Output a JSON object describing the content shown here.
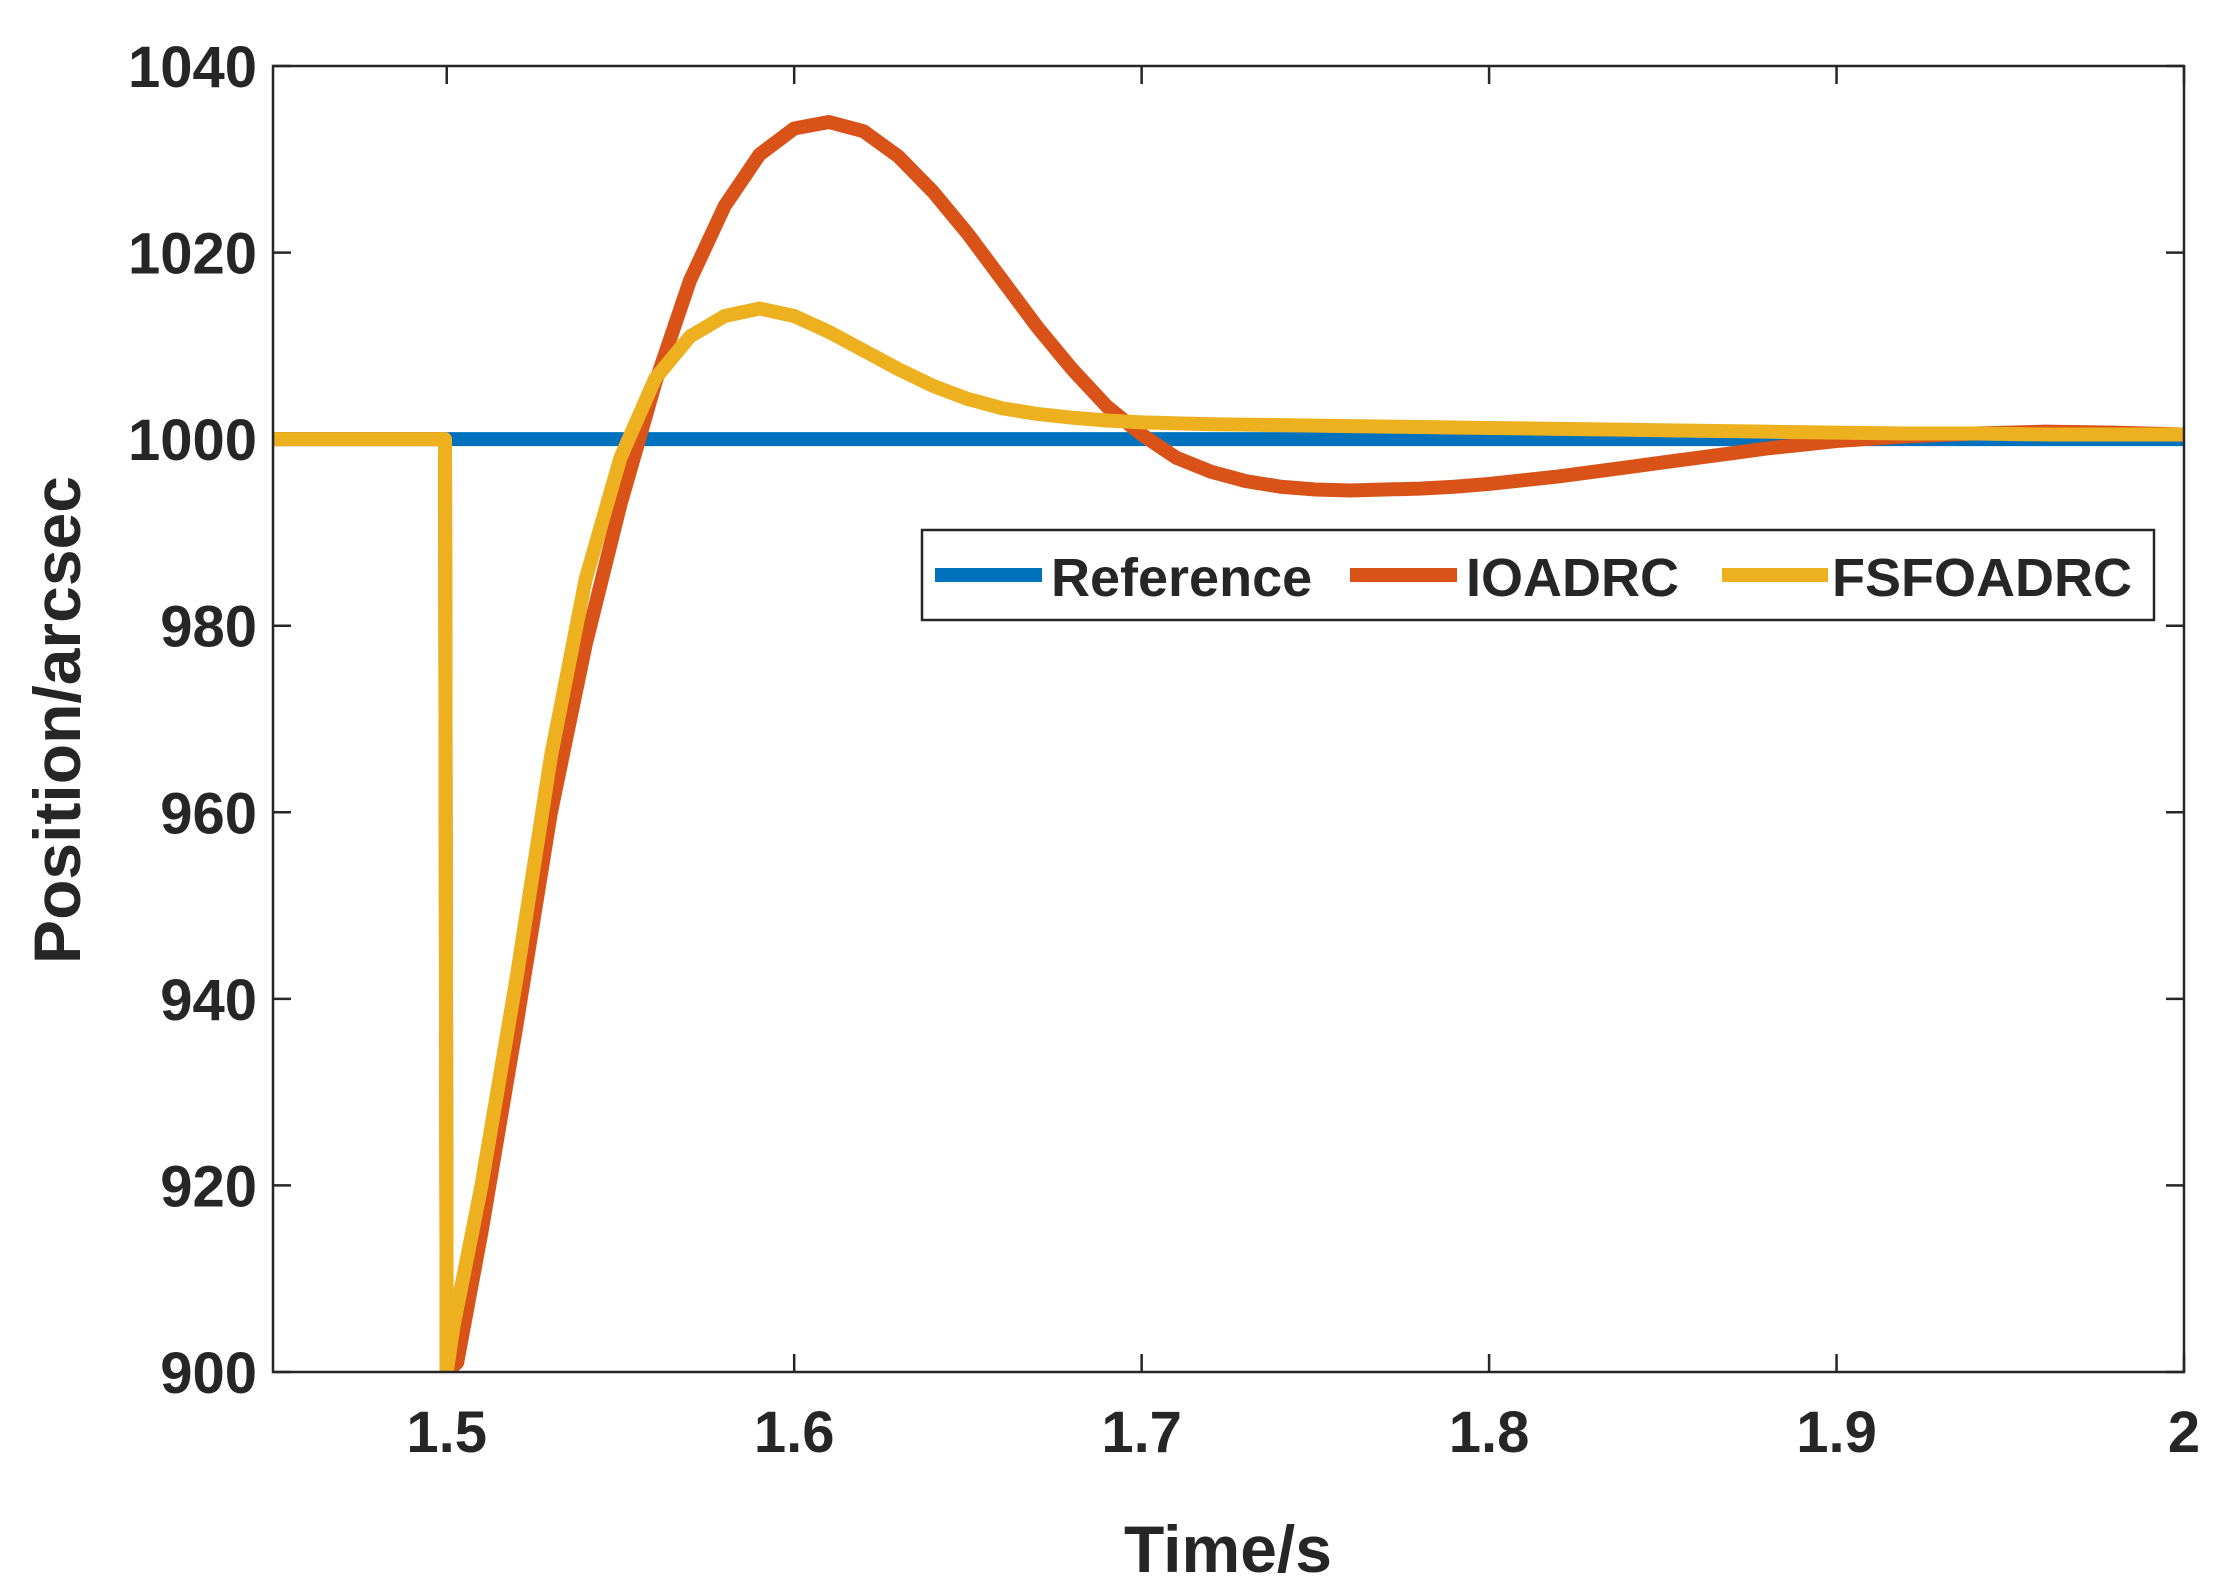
{
  "chart_data": {
    "type": "line",
    "title": "",
    "xlabel": "Time/s",
    "ylabel": "Position/arcsec",
    "xlim": [
      1.45,
      2.0
    ],
    "ylim": [
      900,
      1040
    ],
    "xticks": [
      1.5,
      1.6,
      1.7,
      1.8,
      1.9,
      2.0
    ],
    "xtick_labels": [
      "1.5",
      "1.6",
      "1.7",
      "1.8",
      "1.9",
      "2"
    ],
    "yticks": [
      900,
      920,
      940,
      960,
      980,
      1000,
      1020,
      1040
    ],
    "ytick_labels": [
      "900",
      "920",
      "940",
      "960",
      "980",
      "1000",
      "1020",
      "1040"
    ],
    "grid": false,
    "legend_position": "center-right",
    "series": [
      {
        "name": "Reference",
        "color": "#0072BD",
        "x": [
          1.45,
          2.0
        ],
        "y": [
          1000,
          1000
        ]
      },
      {
        "name": "IOADRC",
        "color": "#D95319",
        "x": [
          1.45,
          1.4995,
          1.5,
          1.503,
          1.51,
          1.52,
          1.53,
          1.54,
          1.55,
          1.56,
          1.57,
          1.58,
          1.59,
          1.6,
          1.61,
          1.62,
          1.63,
          1.64,
          1.65,
          1.66,
          1.67,
          1.68,
          1.69,
          1.7,
          1.71,
          1.72,
          1.73,
          1.74,
          1.75,
          1.76,
          1.77,
          1.78,
          1.79,
          1.8,
          1.81,
          1.82,
          1.83,
          1.84,
          1.85,
          1.86,
          1.87,
          1.88,
          1.89,
          1.9,
          1.92,
          1.94,
          1.96,
          1.98,
          2.0
        ],
        "y": [
          1000,
          1000,
          900,
          901,
          915,
          937,
          960,
          978,
          993,
          1006,
          1017,
          1025,
          1030.5,
          1033.3,
          1034,
          1033,
          1030.3,
          1026.5,
          1022,
          1017,
          1012,
          1007.5,
          1003.5,
          1000.5,
          998,
          996.5,
          995.5,
          994.9,
          994.6,
          994.5,
          994.6,
          994.7,
          994.9,
          995.2,
          995.6,
          996,
          996.5,
          997,
          997.5,
          998,
          998.5,
          999,
          999.4,
          999.8,
          1000.3,
          1000.6,
          1000.8,
          1000.7,
          1000.5
        ]
      },
      {
        "name": "FSFOADRC",
        "color": "#EDB120",
        "x": [
          1.45,
          1.4995,
          1.5,
          1.502,
          1.51,
          1.52,
          1.53,
          1.54,
          1.55,
          1.56,
          1.57,
          1.58,
          1.59,
          1.6,
          1.61,
          1.62,
          1.63,
          1.64,
          1.65,
          1.66,
          1.67,
          1.68,
          1.69,
          1.7,
          1.72,
          1.74,
          1.76,
          1.78,
          1.8,
          1.82,
          1.84,
          1.86,
          1.88,
          1.9,
          1.92,
          1.94,
          1.96,
          1.98,
          2.0
        ],
        "y": [
          1000,
          1000,
          900,
          905,
          920,
          942,
          966,
          985,
          998,
          1006.5,
          1011,
          1013.2,
          1014,
          1013.2,
          1011.5,
          1009.5,
          1007.5,
          1005.7,
          1004.3,
          1003.3,
          1002.7,
          1002.3,
          1002,
          1001.8,
          1001.6,
          1001.5,
          1001.4,
          1001.3,
          1001.2,
          1001.1,
          1001,
          1000.9,
          1000.8,
          1000.7,
          1000.6,
          1000.6,
          1000.5,
          1000.5,
          1000.5
        ]
      }
    ]
  }
}
